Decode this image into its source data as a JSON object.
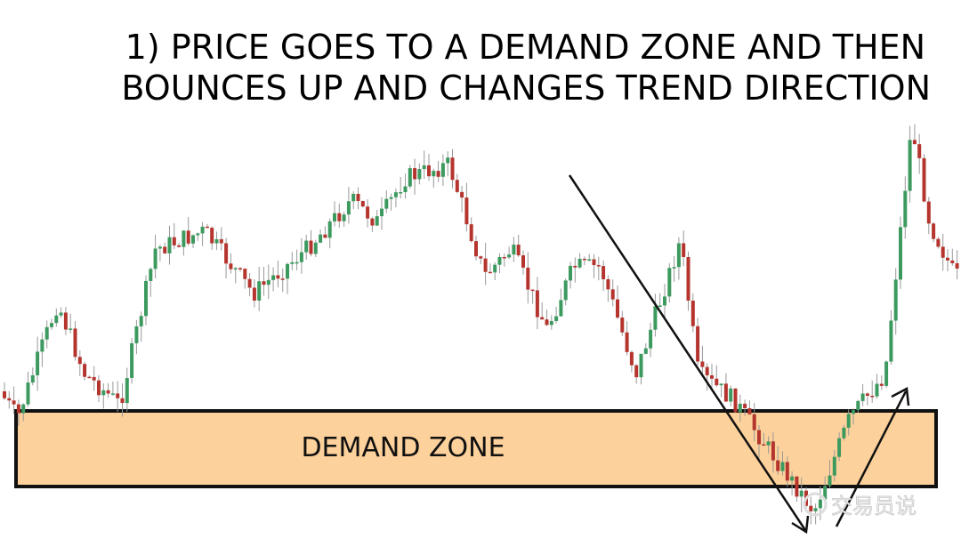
{
  "header": {
    "title_lines": [
      "1) PRICE GOES TO A DEMAND ZONE AND THEN",
      "BOUNCES UP AND CHANGES TREND DIRECTION"
    ]
  },
  "zone": {
    "label": "DEMAND ZONE"
  },
  "watermark": {
    "text": "交易员说"
  }
}
